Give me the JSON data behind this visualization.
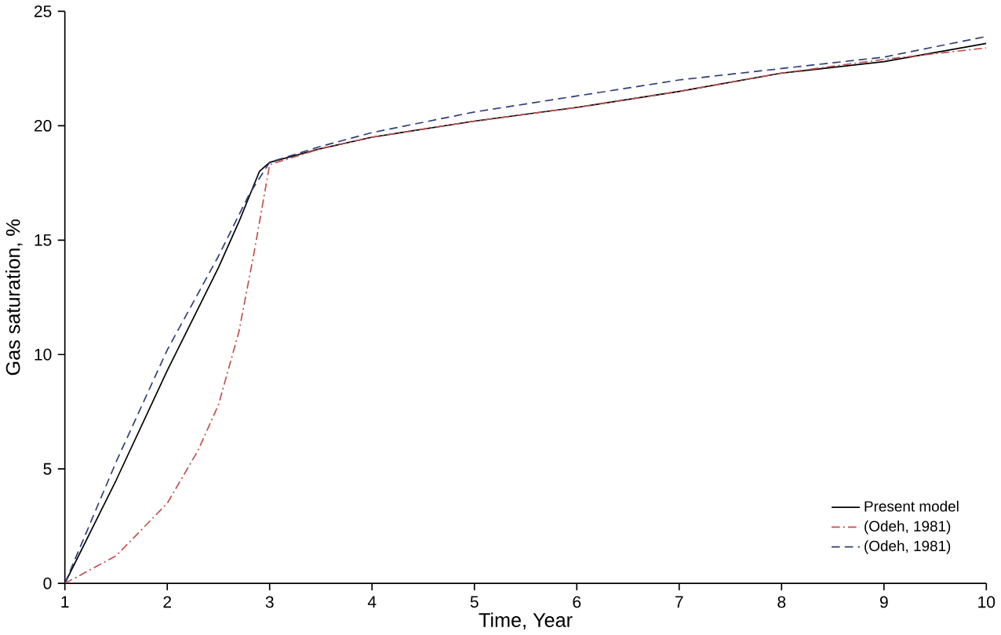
{
  "chart_data": {
    "type": "line",
    "xlabel": "Time, Year",
    "ylabel": "Gas saturation, %",
    "xlim": [
      1,
      10
    ],
    "ylim": [
      0,
      25
    ],
    "xticks": [
      1,
      2,
      3,
      4,
      5,
      6,
      7,
      8,
      9,
      10
    ],
    "yticks": [
      0,
      5,
      10,
      15,
      20,
      25
    ],
    "legend": "bottom right",
    "grid": false,
    "marker": "none",
    "series": [
      {
        "name": "Present model",
        "color": "#000000",
        "line_style": "solid",
        "x": [
          1,
          1.5,
          2,
          2.5,
          2.7,
          2.9,
          3,
          3.5,
          4,
          5,
          6,
          7,
          8,
          9,
          10
        ],
        "values": [
          0,
          4.5,
          9.3,
          13.8,
          15.8,
          18.0,
          18.4,
          19.0,
          19.5,
          20.2,
          20.8,
          21.5,
          22.3,
          22.8,
          23.6
        ]
      },
      {
        "name": "(Odeh, 1981)",
        "color": "#c0504d",
        "line_style": "dashdot",
        "x": [
          1,
          1.5,
          2,
          2.3,
          2.5,
          2.7,
          2.85,
          3,
          3.5,
          4,
          5,
          6,
          7,
          8,
          9,
          10
        ],
        "values": [
          0,
          1.2,
          3.5,
          5.8,
          7.8,
          11,
          14.5,
          18.3,
          19.0,
          19.5,
          20.2,
          20.8,
          21.5,
          22.3,
          22.9,
          23.4
        ]
      },
      {
        "name": "(Odeh, 1981)",
        "color": "#2e3d7a",
        "line_style": "dashed",
        "x": [
          1,
          1.5,
          2,
          2.5,
          2.8,
          3,
          3.5,
          4,
          5,
          6,
          7,
          8,
          9,
          10
        ],
        "values": [
          0,
          5.3,
          10.2,
          14.3,
          17.0,
          18.4,
          19.1,
          19.7,
          20.6,
          21.3,
          22.0,
          22.5,
          23.0,
          23.9
        ]
      }
    ]
  }
}
